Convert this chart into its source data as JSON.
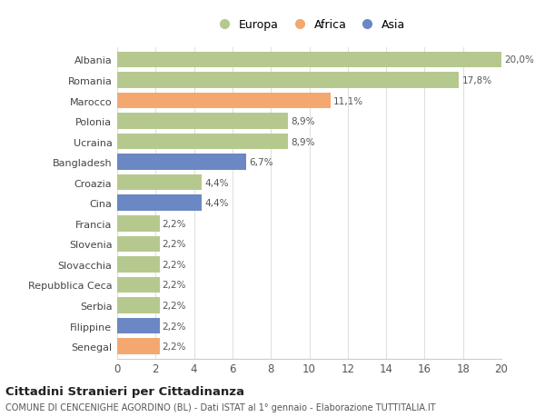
{
  "categories": [
    "Albania",
    "Romania",
    "Marocco",
    "Polonia",
    "Ucraina",
    "Bangladesh",
    "Croazia",
    "Cina",
    "Francia",
    "Slovenia",
    "Slovacchia",
    "Repubblica Ceca",
    "Serbia",
    "Filippine",
    "Senegal"
  ],
  "values": [
    20.0,
    17.8,
    11.1,
    8.9,
    8.9,
    6.7,
    4.4,
    4.4,
    2.2,
    2.2,
    2.2,
    2.2,
    2.2,
    2.2,
    2.2
  ],
  "labels": [
    "20,0%",
    "17,8%",
    "11,1%",
    "8,9%",
    "8,9%",
    "6,7%",
    "4,4%",
    "4,4%",
    "2,2%",
    "2,2%",
    "2,2%",
    "2,2%",
    "2,2%",
    "2,2%",
    "2,2%"
  ],
  "continents": [
    "Europa",
    "Europa",
    "Africa",
    "Europa",
    "Europa",
    "Asia",
    "Europa",
    "Asia",
    "Europa",
    "Europa",
    "Europa",
    "Europa",
    "Europa",
    "Asia",
    "Africa"
  ],
  "colors": {
    "Europa": "#b5c98e",
    "Africa": "#f4a870",
    "Asia": "#6b87c4"
  },
  "legend_labels": [
    "Europa",
    "Africa",
    "Asia"
  ],
  "xlim": [
    0,
    20
  ],
  "xticks": [
    0,
    2,
    4,
    6,
    8,
    10,
    12,
    14,
    16,
    18,
    20
  ],
  "title": "Cittadini Stranieri per Cittadinanza",
  "subtitle": "COMUNE DI CENCENIGHE AGORDINO (BL) - Dati ISTAT al 1° gennaio - Elaborazione TUTTITALIA.IT",
  "background_color": "#ffffff",
  "bar_height": 0.78
}
